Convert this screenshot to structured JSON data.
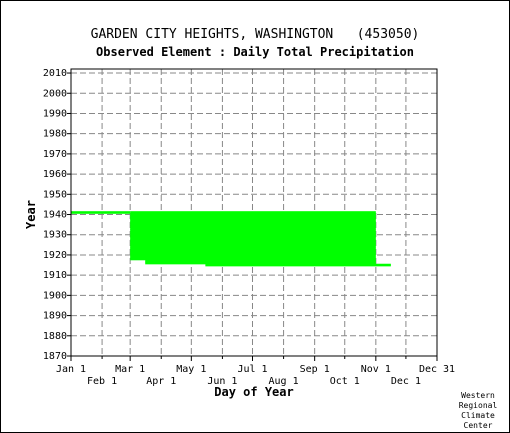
{
  "chart_data": {
    "type": "scatter",
    "title": "GARDEN CITY HEIGHTS, WASHINGTON   (453050)",
    "subtitle": "Observed Element : Daily Total Precipitation",
    "xlabel": "Day of Year",
    "ylabel": "Year",
    "x_ticks_major": [
      "Jan 1",
      "Mar 1",
      "May 1",
      "Jul 1",
      "Sep 1",
      "Nov 1",
      "Dec 31"
    ],
    "x_ticks_minor": [
      "Feb 1",
      "Apr 1",
      "Jun 1",
      "Aug 1",
      "Oct 1",
      "Dec 1"
    ],
    "y_ticks": [
      1870,
      1880,
      1890,
      1900,
      1910,
      1920,
      1930,
      1940,
      1950,
      1960,
      1970,
      1980,
      1990,
      2000,
      2010
    ],
    "xlim": [
      1,
      366
    ],
    "ylim": [
      1870,
      2012
    ],
    "grid": true,
    "series_color": "#00ff00",
    "observed_periods": [
      {
        "year": 1941,
        "start_day": 1,
        "end_day": 60
      },
      {
        "year": 1941,
        "start_day": 60,
        "end_day": 305
      },
      {
        "year": 1940,
        "start_day": 60,
        "end_day": 305
      },
      {
        "year": 1939,
        "start_day": 60,
        "end_day": 305
      },
      {
        "year": 1938,
        "start_day": 60,
        "end_day": 305
      },
      {
        "year": 1937,
        "start_day": 60,
        "end_day": 305
      },
      {
        "year": 1936,
        "start_day": 60,
        "end_day": 305
      },
      {
        "year": 1935,
        "start_day": 60,
        "end_day": 305
      },
      {
        "year": 1934,
        "start_day": 60,
        "end_day": 305
      },
      {
        "year": 1933,
        "start_day": 60,
        "end_day": 305
      },
      {
        "year": 1932,
        "start_day": 60,
        "end_day": 305
      },
      {
        "year": 1931,
        "start_day": 60,
        "end_day": 305
      },
      {
        "year": 1930,
        "start_day": 60,
        "end_day": 305
      },
      {
        "year": 1929,
        "start_day": 60,
        "end_day": 305
      },
      {
        "year": 1928,
        "start_day": 60,
        "end_day": 305
      },
      {
        "year": 1927,
        "start_day": 60,
        "end_day": 305
      },
      {
        "year": 1926,
        "start_day": 60,
        "end_day": 305
      },
      {
        "year": 1925,
        "start_day": 60,
        "end_day": 305
      },
      {
        "year": 1924,
        "start_day": 60,
        "end_day": 305
      },
      {
        "year": 1923,
        "start_day": 60,
        "end_day": 305
      },
      {
        "year": 1922,
        "start_day": 60,
        "end_day": 305
      },
      {
        "year": 1921,
        "start_day": 60,
        "end_day": 305
      },
      {
        "year": 1920,
        "start_day": 60,
        "end_day": 305
      },
      {
        "year": 1919,
        "start_day": 60,
        "end_day": 305
      },
      {
        "year": 1918,
        "start_day": 60,
        "end_day": 305
      },
      {
        "year": 1917,
        "start_day": 75,
        "end_day": 305
      },
      {
        "year": 1916,
        "start_day": 75,
        "end_day": 305
      },
      {
        "year": 1915,
        "start_day": 135,
        "end_day": 320
      }
    ]
  },
  "credit": [
    "Western",
    "Regional",
    "Climate",
    "Center"
  ]
}
